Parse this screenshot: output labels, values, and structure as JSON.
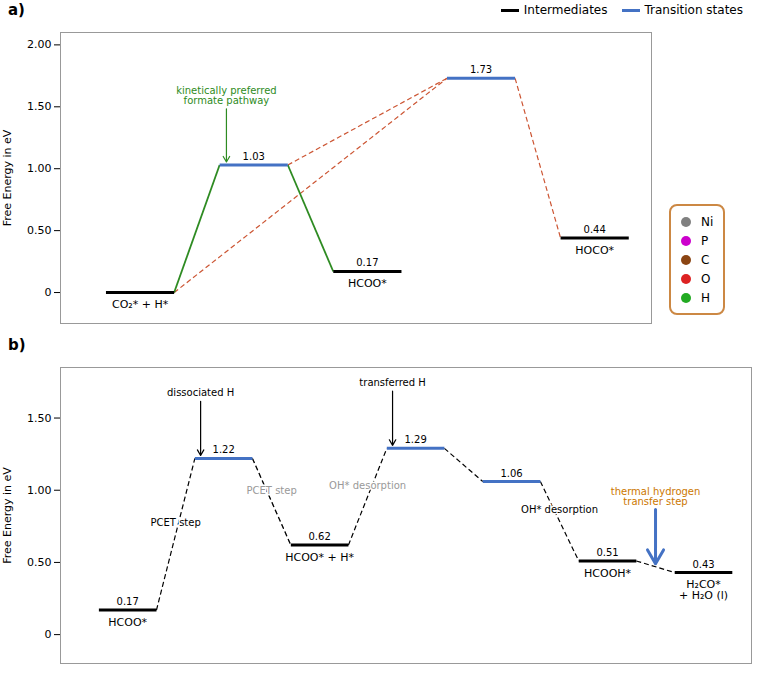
{
  "chart_data": [
    {
      "type": "energy_profile",
      "title": "a)",
      "ylabel": "Free Energy in eV",
      "categories": [
        "CO₂* + H*",
        null,
        "HCOO*",
        null,
        "HOCO*"
      ],
      "series": [
        {
          "name": "Intermediates",
          "color": "#000000",
          "values": [
            0.0,
            null,
            0.17,
            null,
            0.44
          ],
          "value_labels": [
            null,
            null,
            "0.17",
            null,
            "0.44"
          ]
        },
        {
          "name": "Transition states",
          "color": "#4472C4",
          "values": [
            null,
            1.03,
            null,
            1.73,
            null
          ],
          "value_labels": [
            null,
            "1.03",
            null,
            "1.73",
            null
          ]
        }
      ],
      "connections": [
        {
          "from": 0,
          "to": 3,
          "color": "#CC5533",
          "line_style": "dashed"
        },
        {
          "from": 1,
          "to": 3,
          "color": "#CC5533",
          "line_style": "dashed"
        },
        {
          "from": 3,
          "to": 4,
          "color": "#CC5533",
          "line_style": "dashed"
        },
        {
          "from": 0,
          "to": 1,
          "color": "#2E8B22",
          "line_style": "solid"
        },
        {
          "from": 1,
          "to": 2,
          "color": "#2E8B22",
          "line_style": "solid"
        }
      ],
      "annotations": [
        {
          "text": "kinetically preferred\nformate pathway",
          "color": "#2E8B22",
          "level": 1,
          "arrow_color": "#2E8B22"
        }
      ],
      "atom_legend": {
        "color": "#CC8844",
        "items": [
          {
            "name": "Ni",
            "color": "#808080"
          },
          {
            "name": "P",
            "color": "#CC00CC"
          },
          {
            "name": "C",
            "color": "#8B4513"
          },
          {
            "name": "O",
            "color": "#DD2222"
          },
          {
            "name": "H",
            "color": "#22AA22"
          }
        ]
      },
      "ylim": [
        -0.25,
        2.1
      ],
      "yticks": [
        0,
        {
          "value": 0.5,
          "label": "0.50"
        },
        {
          "value": 1.0,
          "label": "1.00"
        },
        {
          "value": 1.5,
          "label": "1.50"
        },
        {
          "value": 2.0,
          "label": "2.00"
        }
      ],
      "legend": "top-right"
    },
    {
      "type": "energy_profile",
      "title": "b)",
      "ylabel": "Free Energy in eV",
      "categories": [
        "HCOO*",
        null,
        "HCOO* + H*",
        null,
        null,
        "HCOOH*",
        "H₂CO*\n+ H₂O (l)"
      ],
      "series": [
        {
          "color": "#000000",
          "values": [
            0.17,
            null,
            0.62,
            null,
            null,
            0.51,
            0.43
          ],
          "value_labels": [
            "0.17",
            null,
            "0.62",
            null,
            null,
            "0.51",
            "0.43"
          ]
        },
        {
          "color": "#4472C4",
          "values": [
            null,
            1.22,
            null,
            1.29,
            1.06,
            null,
            null
          ],
          "value_labels": [
            null,
            "1.22",
            null,
            "1.29",
            "1.06",
            null,
            null
          ]
        }
      ],
      "connections": [
        {
          "from": 1,
          "to": 2,
          "color": "#999999",
          "line_style": "dashed"
        },
        {
          "from": 0,
          "to": 1,
          "color": "#000000",
          "line_style": "dashed"
        },
        {
          "from": 1,
          "to": 2,
          "color": "#000000",
          "line_style": "dashed"
        },
        {
          "from": 2,
          "to": 3,
          "color": "#000000",
          "line_style": "dashed"
        },
        {
          "from": 3,
          "to": 4,
          "color": "#000000",
          "line_style": "dashed"
        },
        {
          "from": 4,
          "to": 5,
          "color": "#000000",
          "line_style": "dashed"
        },
        {
          "from": 5,
          "to": 6,
          "color": "#000000",
          "line_style": "dashed"
        }
      ],
      "annotations": [
        {
          "text": "PCET step",
          "color": "#000000",
          "connection": 1
        },
        {
          "text": "PCET step",
          "color": "#999999",
          "connection": 0
        },
        {
          "text": "OH* desorption",
          "color": "#999999",
          "connection": 3
        },
        {
          "text": "OH* desorption",
          "color": "#000000",
          "connection": 5
        },
        {
          "text": "dissociated H",
          "color": "#000000",
          "level": 1,
          "arrow_color": "#000000"
        },
        {
          "text": "transferred H",
          "color": "#000000",
          "level": 3,
          "arrow_color": "#000000"
        },
        {
          "text": "thermal hydrogen\ntransfer step",
          "color": "#CC7700",
          "connection": 6,
          "arrow_color": "#4472C4"
        }
      ],
      "ylim": [
        -0.2,
        1.85
      ],
      "yticks": [
        0,
        {
          "value": 0.5,
          "label": "0.50"
        },
        {
          "value": 1.0,
          "label": "1.00"
        },
        {
          "value": 1.5,
          "label": "1.50"
        }
      ]
    }
  ]
}
